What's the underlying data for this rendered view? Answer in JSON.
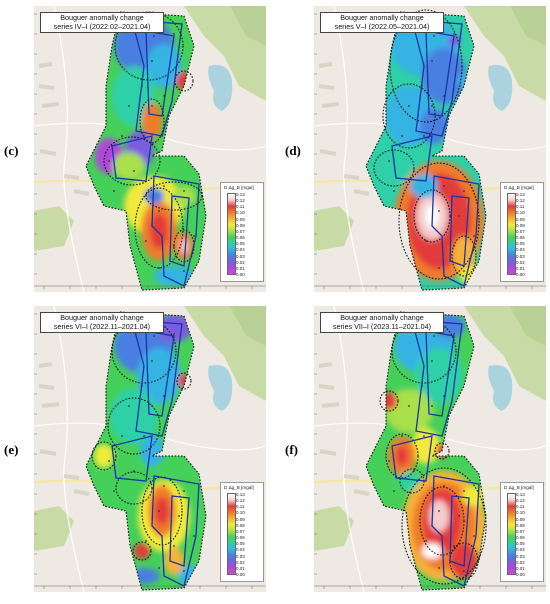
{
  "panels": [
    {
      "letter": "(c)",
      "title_line1": "Bouguer anomally change",
      "title_line2": "series IV–I (2022.02–2021.04)",
      "legend_title": "D Δg_B [mgal]",
      "legend_ticks": [
        "0.13",
        "0.12",
        "0.11",
        "0.10",
        "0.09",
        "0.08",
        "0.07",
        "0.06",
        "0.05",
        "0.04",
        "0.03",
        "0.02",
        "0.01",
        "0.00"
      ],
      "scheme": "c"
    },
    {
      "letter": "(d)",
      "title_line1": "Bouguer anomally change",
      "title_line2": "series V–I (2022.05–2021.04)",
      "legend_title": "D Δg_B [mgal]",
      "legend_ticks": [
        "0.13",
        "0.12",
        "0.11",
        "0.10",
        "0.09",
        "0.08",
        "0.07",
        "0.06",
        "0.05",
        "0.04",
        "0.03",
        "0.02",
        "0.01",
        "0.00"
      ],
      "scheme": "d"
    },
    {
      "letter": "(e)",
      "title_line1": "Bouguer anomally change",
      "title_line2": "series VI–I (2022.11–2021.04)",
      "legend_title": "D Δg_B [mgal]",
      "legend_ticks": [
        "0.13",
        "0.12",
        "0.11",
        "0.10",
        "0.09",
        "0.08",
        "0.07",
        "0.06",
        "0.05",
        "0.04",
        "0.03",
        "0.02",
        "0.01",
        "0.00"
      ],
      "scheme": "e"
    },
    {
      "letter": "(f)",
      "title_line1": "Bouguer anomally change",
      "title_line2": "series VII–I (2023.11–2021.04)",
      "legend_title": "D Δg_B [mgal]",
      "legend_ticks": [
        "0.13",
        "0.12",
        "0.11",
        "0.10",
        "0.09",
        "0.08",
        "0.07",
        "0.06",
        "0.05",
        "0.04",
        "0.03",
        "0.02",
        "0.01",
        "0.00"
      ],
      "scheme": "f"
    }
  ],
  "colors": {
    "map_background": "#eeeae3",
    "forest": "#c8dba7",
    "water": "#aad3df",
    "road": "#ffffff",
    "road_major": "#f7e6a0",
    "boundary": "#1a34a8",
    "isoline": "#111111",
    "colormap": [
      "#ffffff",
      "#f4cccc",
      "#e23b3b",
      "#f07b2a",
      "#f6b23a",
      "#f2ea3a",
      "#a9e04b",
      "#45d05a",
      "#2fd0a8",
      "#34b4e4",
      "#4a7fe0",
      "#7c5ce0",
      "#b046d8",
      "#d04ad8"
    ]
  }
}
